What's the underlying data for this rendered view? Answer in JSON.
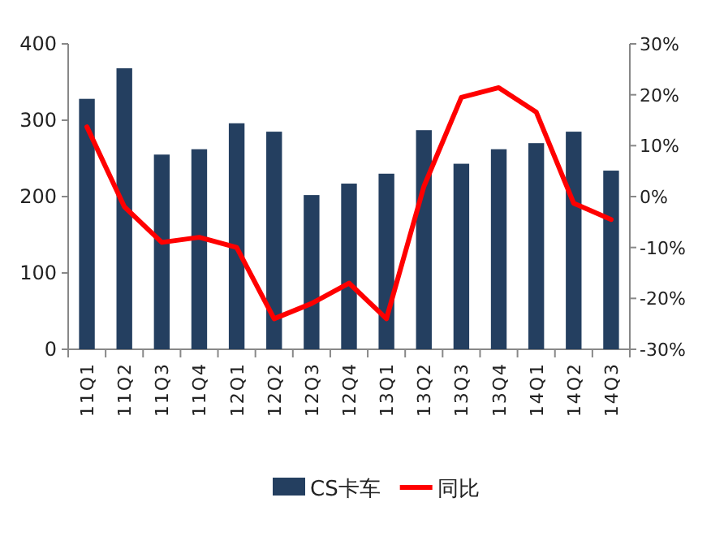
{
  "chart_data": {
    "type": "bar",
    "categories": [
      "11Q1",
      "11Q2",
      "11Q3",
      "11Q4",
      "12Q1",
      "12Q2",
      "12Q3",
      "12Q4",
      "13Q1",
      "13Q2",
      "13Q3",
      "13Q4",
      "14Q1",
      "14Q2",
      "14Q3"
    ],
    "series": [
      {
        "name": "CS卡车",
        "color": "#243f60",
        "values": [
          328,
          368,
          255,
          262,
          296,
          285,
          202,
          217,
          230,
          287,
          243,
          262,
          270,
          285,
          234
        ]
      },
      {
        "name": "同比",
        "type": "line",
        "axis": "y2",
        "color": "#ff0000",
        "values": [
          13.7,
          -2,
          -9,
          -8,
          -10,
          -24,
          -21,
          -17,
          -24,
          2,
          19.5,
          21.4,
          16.6,
          -1.3,
          -4.5
        ]
      }
    ],
    "ylim": [
      0,
      400
    ],
    "yticks": [
      0,
      100,
      200,
      300,
      400
    ],
    "y2lim": [
      -30,
      30
    ],
    "y2ticks": [
      {
        "value": -30,
        "label": "-30%"
      },
      {
        "value": -20,
        "label": "-20%"
      },
      {
        "value": -10,
        "label": "-10%"
      },
      {
        "value": 0,
        "label": "0%"
      },
      {
        "value": 10,
        "label": "10%"
      },
      {
        "value": 20,
        "label": "20%"
      },
      {
        "value": 30,
        "label": "30%"
      }
    ],
    "legend": "bottom",
    "grid": false
  }
}
